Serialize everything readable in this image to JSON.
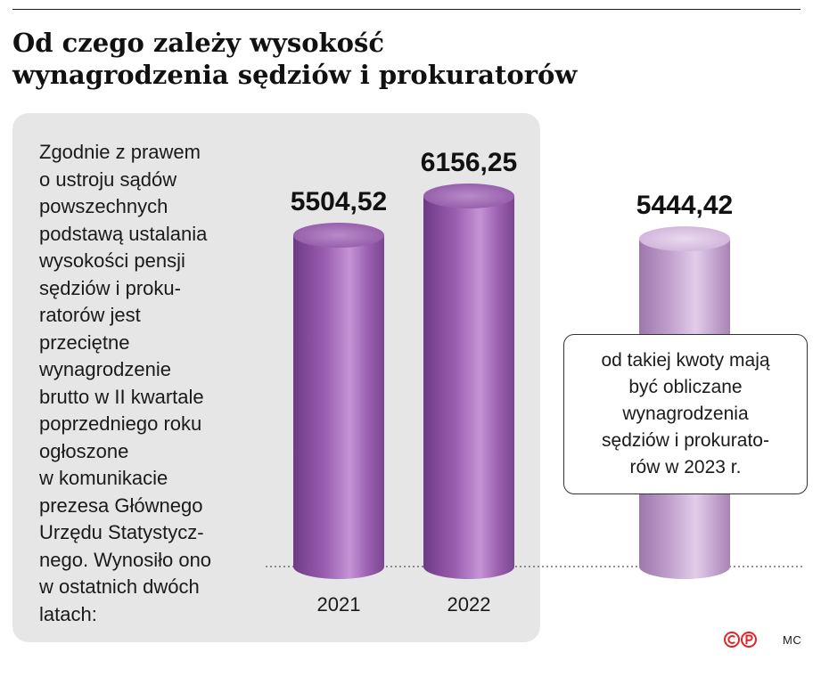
{
  "title": {
    "line1": "Od czego zależy wysokość",
    "line2": "wynagrodzenia sędziów i prokuratorów"
  },
  "description_lines": [
    "Zgodnie z prawem",
    "o ustroju sądów",
    "powszechnych",
    "podstawą ustalania",
    "wysokości pensji",
    "sędziów i proku-",
    "ratorów jest",
    "przeciętne",
    "wynagrodzenie",
    "brutto w II kwartale",
    "poprzedniego roku",
    "ogłoszone",
    "w komunikacie",
    "prezesa Głównego",
    "Urzędu Statystycz-",
    "nego. Wynosiło ono",
    "w ostatnich dwóch",
    "latach:"
  ],
  "callout_lines": [
    "od takiej kwoty mają",
    "być obliczane",
    "wynagrodzenia",
    "sędziów i prokurato-",
    "rów w 2023 r."
  ],
  "credit": "MC",
  "colors": {
    "bar_dark": "#8a4f9e",
    "bar_light": "#c9a6d6",
    "panel": "#e6e6e6",
    "logo": "#e0242a"
  },
  "chart_data": {
    "type": "bar",
    "style": "3d-cylinder",
    "categories": [
      "2021",
      "2022",
      ""
    ],
    "values": [
      5504.52,
      6156.25,
      5444.42
    ],
    "value_labels": [
      "5504,52",
      "6156,25",
      "5444,42"
    ],
    "highlight": [
      false,
      false,
      true
    ],
    "ylim": [
      0,
      6156.25
    ],
    "grid": false,
    "baseline": "dotted"
  }
}
